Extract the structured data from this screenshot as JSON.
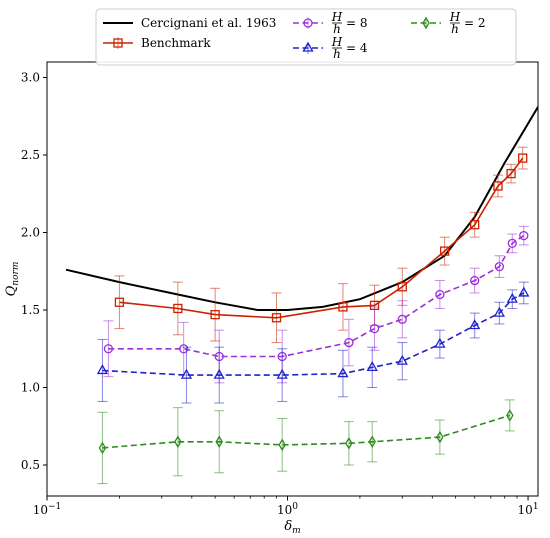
{
  "chart_data": {
    "type": "line",
    "xscale": "log",
    "xlim": [
      0.1,
      11
    ],
    "ylim": [
      0.3,
      3.1
    ],
    "xlabel": "δm",
    "ylabel": "Qnorm",
    "x_ticks": [
      {
        "value": 0.1,
        "base": "10",
        "exp": "−1"
      },
      {
        "value": 1,
        "base": "10",
        "exp": "0"
      },
      {
        "value": 10,
        "base": "10",
        "exp": "1"
      }
    ],
    "y_ticks": [
      {
        "value": 0.5,
        "label": "0.5"
      },
      {
        "value": 1.0,
        "label": "1.0"
      },
      {
        "value": 1.5,
        "label": "1.5"
      },
      {
        "value": 2.0,
        "label": "2.0"
      },
      {
        "value": 2.5,
        "label": "2.5"
      },
      {
        "value": 3.0,
        "label": "3.0"
      }
    ],
    "grid": false,
    "legend_position": "top",
    "series": [
      {
        "name": "Cercignani et al. 1963",
        "color": "#000000",
        "dash": "solid",
        "marker": "none",
        "x": [
          0.12,
          0.2,
          0.35,
          0.5,
          0.75,
          1.0,
          1.4,
          2.0,
          3.0,
          4.5,
          6.0,
          8.0,
          11.0
        ],
        "y": [
          1.76,
          1.68,
          1.6,
          1.55,
          1.5,
          1.5,
          1.52,
          1.57,
          1.68,
          1.85,
          2.1,
          2.45,
          2.81
        ],
        "err": null
      },
      {
        "name": "Benchmark",
        "color": "#cc2200",
        "dash": "solid",
        "marker": "square",
        "x": [
          0.2,
          0.35,
          0.5,
          0.9,
          1.7,
          2.3,
          3.0,
          4.5,
          6.0,
          7.5,
          8.5,
          9.5
        ],
        "y": [
          1.55,
          1.51,
          1.47,
          1.45,
          1.52,
          1.53,
          1.65,
          1.88,
          2.05,
          2.3,
          2.38,
          2.48
        ],
        "err": [
          0.17,
          0.17,
          0.17,
          0.16,
          0.15,
          0.13,
          0.12,
          0.09,
          0.08,
          0.07,
          0.06,
          0.07
        ]
      },
      {
        "name": "H/h = 8",
        "label_parts": {
          "num": "H",
          "den": "h",
          "value": "8"
        },
        "color": "#9b30d9",
        "dash": "dashed",
        "marker": "circle",
        "x": [
          0.18,
          0.37,
          0.52,
          0.95,
          1.8,
          2.3,
          3.0,
          4.3,
          6.0,
          7.6,
          8.6,
          9.6
        ],
        "y": [
          1.25,
          1.25,
          1.2,
          1.2,
          1.29,
          1.38,
          1.44,
          1.6,
          1.69,
          1.78,
          1.93,
          1.98
        ],
        "err": [
          0.18,
          0.17,
          0.17,
          0.17,
          0.15,
          0.14,
          0.12,
          0.09,
          0.08,
          0.07,
          0.06,
          0.06
        ]
      },
      {
        "name": "H/h = 4",
        "label_parts": {
          "num": "H",
          "den": "h",
          "value": "4"
        },
        "color": "#1f22cc",
        "dash": "dashed",
        "marker": "triangle",
        "x": [
          0.17,
          0.38,
          0.52,
          0.95,
          1.7,
          2.25,
          3.0,
          4.3,
          6.0,
          7.6,
          8.6,
          9.6
        ],
        "y": [
          1.11,
          1.08,
          1.08,
          1.08,
          1.09,
          1.13,
          1.17,
          1.28,
          1.4,
          1.48,
          1.57,
          1.61
        ],
        "err": [
          0.2,
          0.18,
          0.18,
          0.17,
          0.15,
          0.13,
          0.12,
          0.09,
          0.08,
          0.07,
          0.06,
          0.07
        ]
      },
      {
        "name": "H/h = 2",
        "label_parts": {
          "num": "H",
          "den": "h",
          "value": "2"
        },
        "color": "#2e8b1e",
        "dash": "dashed",
        "marker": "diamond",
        "x": [
          0.17,
          0.35,
          0.52,
          0.95,
          1.8,
          2.25,
          4.3,
          8.4
        ],
        "y": [
          0.61,
          0.65,
          0.65,
          0.63,
          0.64,
          0.65,
          0.68,
          0.82
        ],
        "err": [
          0.23,
          0.22,
          0.2,
          0.17,
          0.14,
          0.13,
          0.11,
          0.1
        ]
      }
    ]
  }
}
